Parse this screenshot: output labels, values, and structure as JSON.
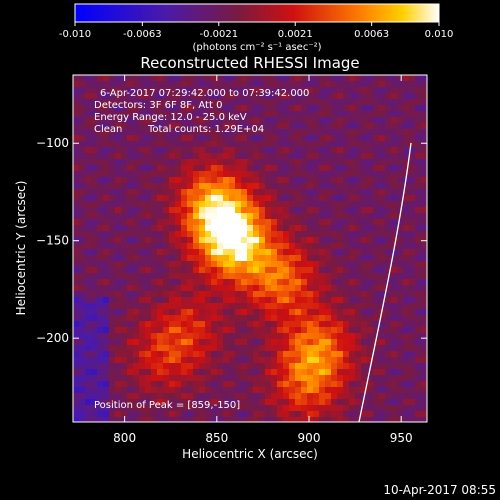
{
  "chart_data": {
    "type": "heatmap",
    "title": "Reconstructed RHESSI Image",
    "xlabel": "Heliocentric X (arcsec)",
    "ylabel": "Heliocentric Y (arcsec)",
    "xlim": [
      772,
      964
    ],
    "ylim": [
      -243,
      -65
    ],
    "xticks": [
      800,
      850,
      900,
      950
    ],
    "yticks": [
      -100,
      -150,
      -200
    ],
    "colorbar": {
      "ticks": [
        -0.01,
        -0.0063,
        -0.0021,
        0.0021,
        0.0063,
        0.01
      ],
      "tick_labels": [
        "-0.010",
        "-0.0063",
        "-0.0021",
        "0.0021",
        "0.0063",
        "0.010"
      ],
      "units_label": "(photons cm⁻² s⁻¹ asec⁻²)",
      "colormap": "blue-purple-red-orange-yellow-white"
    },
    "annotations": {
      "time_range": "6-Apr-2017 07:29:42.000 to 07:39:42.000",
      "detectors": "Detectors: 3F 6F 8F, Att 0",
      "energy_range": "Energy Range: 12.0 - 25.0 keV",
      "method": "Clean",
      "total_counts": "Total counts: 1.29E+04",
      "peak": "Position of Peak = [859,-150]"
    },
    "peak_position": [
      859,
      -150
    ],
    "sources": [
      {
        "x": 859,
        "y": -150,
        "amp": 1.0
      },
      {
        "x": 848,
        "y": -131,
        "amp": 0.75
      },
      {
        "x": 885,
        "y": -170,
        "amp": 0.6
      },
      {
        "x": 905,
        "y": -205,
        "amp": 0.6
      },
      {
        "x": 898,
        "y": -225,
        "amp": 0.45
      },
      {
        "x": 835,
        "y": -195,
        "amp": 0.35
      },
      {
        "x": 820,
        "y": -210,
        "amp": 0.35
      }
    ],
    "limb_arc": "white curve near right edge"
  },
  "footer": {
    "timestamp": "10-Apr-2017 08:55"
  }
}
